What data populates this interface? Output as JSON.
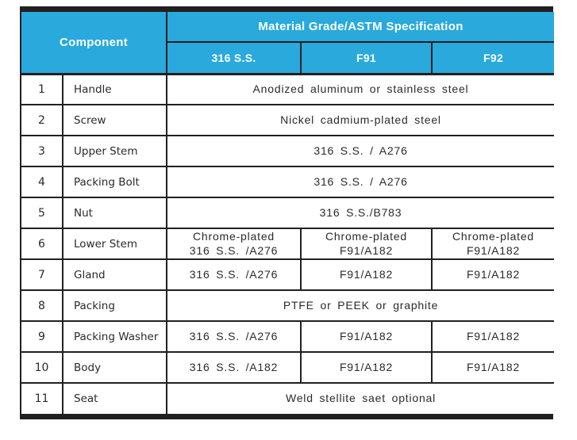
{
  "table": {
    "header": {
      "component": "Component",
      "material_spec": "Material Grade/ASTM Specification",
      "columns": [
        "316 S.S.",
        "F91",
        "F92"
      ]
    },
    "rows": [
      {
        "num": "1",
        "component": "Handle",
        "span": "Anodized aluminum or stainless steel"
      },
      {
        "num": "2",
        "component": "Screw",
        "span": "Nickel cadmium-plated steel"
      },
      {
        "num": "3",
        "component": "Upper Stem",
        "span": "316 S.S. / A276"
      },
      {
        "num": "4",
        "component": "Packing Bolt",
        "span": "316 S.S. / A276"
      },
      {
        "num": "5",
        "component": "Nut",
        "span": "316 S.S./B783"
      },
      {
        "num": "6",
        "component": "Lower Stem",
        "cells": [
          "Chrome-plated\n316 S.S. /A276",
          "Chrome-plated\nF91/A182",
          "Chrome-plated\nF91/A182"
        ]
      },
      {
        "num": "7",
        "component": "Gland",
        "cells": [
          "316 S.S. /A276",
          "F91/A182",
          "F91/A182"
        ]
      },
      {
        "num": "8",
        "component": "Packing",
        "span": "PTFE or PEEK or graphite"
      },
      {
        "num": "9",
        "component": "Packing Washer",
        "cells": [
          "316 S.S. /A276",
          "F91/A182",
          "F91/A182"
        ]
      },
      {
        "num": "10",
        "component": "Body",
        "cells": [
          "316 S.S. /A182",
          "F91/A182",
          "F91/A182"
        ]
      },
      {
        "num": "11",
        "component": "Seat",
        "span": "Weld stellite saet optional"
      }
    ],
    "colors": {
      "header_bg": "#29A9DC",
      "header_text": "#FFFFFF",
      "bar_black": "#231F20",
      "body_text": "#2B2A2B"
    }
  }
}
